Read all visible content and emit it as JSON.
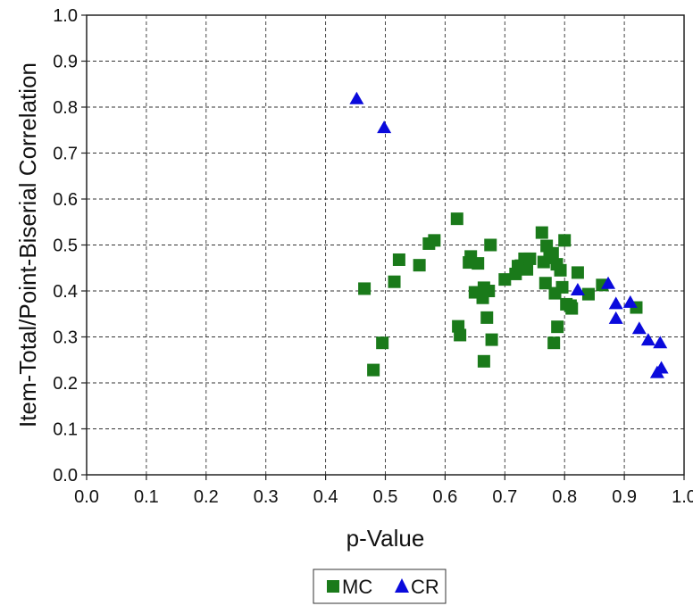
{
  "chart_data": {
    "type": "scatter",
    "title": "",
    "xlabel": "p-Value",
    "ylabel": "Item-Total/Point-Biserial Correlation",
    "xlim": [
      0.0,
      1.0
    ],
    "ylim": [
      0.0,
      1.0
    ],
    "x_ticks": [
      "0.0",
      "0.1",
      "0.2",
      "0.3",
      "0.4",
      "0.5",
      "0.6",
      "0.7",
      "0.8",
      "0.9",
      "1.0"
    ],
    "y_ticks": [
      "0.0",
      "0.1",
      "0.2",
      "0.3",
      "0.4",
      "0.5",
      "0.6",
      "0.7",
      "0.8",
      "0.9",
      "1.0"
    ],
    "grid": true,
    "legend_position": "bottom",
    "series": [
      {
        "name": "MC",
        "marker": "square",
        "color": "#1a7a1a",
        "points": [
          [
            0.465,
            0.405
          ],
          [
            0.48,
            0.228
          ],
          [
            0.495,
            0.287
          ],
          [
            0.515,
            0.42
          ],
          [
            0.523,
            0.468
          ],
          [
            0.557,
            0.456
          ],
          [
            0.573,
            0.503
          ],
          [
            0.582,
            0.51
          ],
          [
            0.62,
            0.557
          ],
          [
            0.622,
            0.323
          ],
          [
            0.625,
            0.304
          ],
          [
            0.64,
            0.462
          ],
          [
            0.643,
            0.475
          ],
          [
            0.65,
            0.397
          ],
          [
            0.655,
            0.46
          ],
          [
            0.663,
            0.385
          ],
          [
            0.665,
            0.407
          ],
          [
            0.665,
            0.247
          ],
          [
            0.67,
            0.342
          ],
          [
            0.673,
            0.4
          ],
          [
            0.676,
            0.5
          ],
          [
            0.678,
            0.294
          ],
          [
            0.7,
            0.425
          ],
          [
            0.718,
            0.437
          ],
          [
            0.722,
            0.454
          ],
          [
            0.727,
            0.455
          ],
          [
            0.733,
            0.47
          ],
          [
            0.737,
            0.447
          ],
          [
            0.742,
            0.47
          ],
          [
            0.762,
            0.527
          ],
          [
            0.765,
            0.463
          ],
          [
            0.768,
            0.417
          ],
          [
            0.77,
            0.498
          ],
          [
            0.775,
            0.472
          ],
          [
            0.78,
            0.482
          ],
          [
            0.782,
            0.287
          ],
          [
            0.784,
            0.395
          ],
          [
            0.787,
            0.458
          ],
          [
            0.788,
            0.322
          ],
          [
            0.793,
            0.445
          ],
          [
            0.796,
            0.408
          ],
          [
            0.8,
            0.51
          ],
          [
            0.803,
            0.371
          ],
          [
            0.81,
            0.368
          ],
          [
            0.812,
            0.362
          ],
          [
            0.822,
            0.44
          ],
          [
            0.84,
            0.393
          ],
          [
            0.863,
            0.413
          ],
          [
            0.92,
            0.364
          ]
        ]
      },
      {
        "name": "CR",
        "marker": "triangle",
        "color": "#0a0adc",
        "points": [
          [
            0.452,
            0.818
          ],
          [
            0.498,
            0.755
          ],
          [
            0.822,
            0.402
          ],
          [
            0.873,
            0.416
          ],
          [
            0.886,
            0.372
          ],
          [
            0.886,
            0.34
          ],
          [
            0.91,
            0.375
          ],
          [
            0.925,
            0.318
          ],
          [
            0.94,
            0.293
          ],
          [
            0.955,
            0.222
          ],
          [
            0.96,
            0.287
          ],
          [
            0.962,
            0.232
          ]
        ]
      }
    ]
  }
}
